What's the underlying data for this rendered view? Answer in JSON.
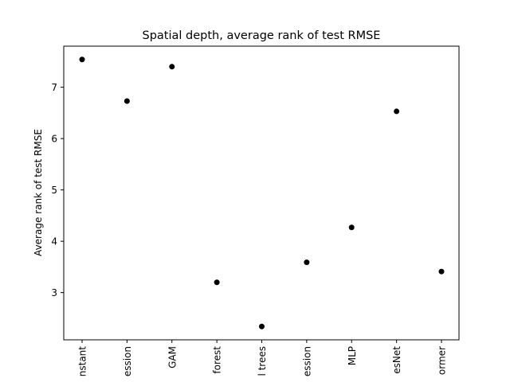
{
  "chart_data": {
    "type": "scatter",
    "title": "Spatial depth, average rank of test RMSE",
    "xlabel": "",
    "ylabel": "Average rank of test RMSE",
    "categories": [
      "nstant",
      "ession",
      "GAM",
      "forest",
      "l trees",
      "ession",
      "MLP",
      "esNet",
      "ormer"
    ],
    "values": [
      7.54,
      6.73,
      7.4,
      3.2,
      2.34,
      3.59,
      4.27,
      6.53,
      3.41
    ],
    "yticks": [
      3,
      4,
      5,
      6,
      7
    ],
    "ylim": [
      2.08,
      7.8
    ],
    "grid": false,
    "legend": "none",
    "marker_color": "#000000"
  }
}
